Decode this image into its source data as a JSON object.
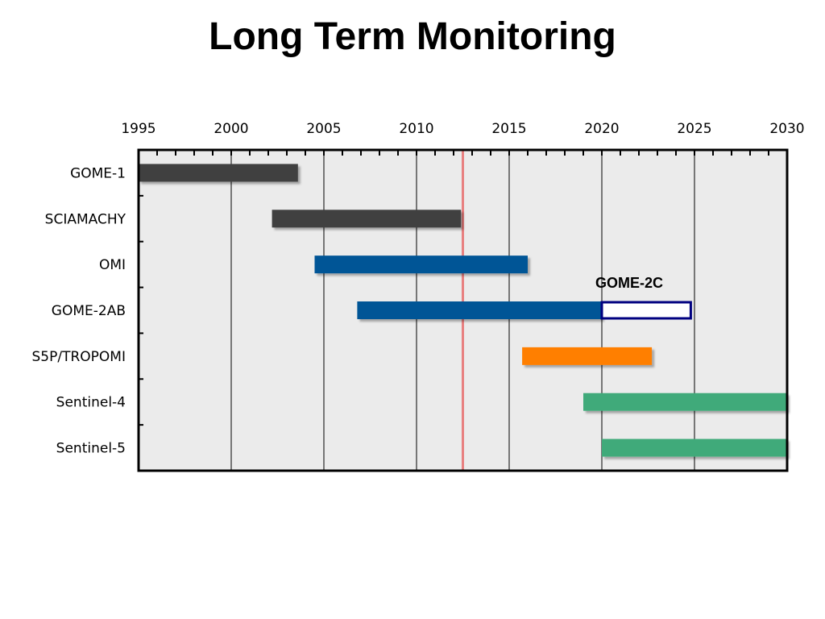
{
  "title": "Long Term Monitoring",
  "chart_data": {
    "type": "gantt",
    "title": "Long Term Monitoring",
    "xlim": [
      1995,
      2030
    ],
    "x_ticks": [
      "1995",
      "2000",
      "2005",
      "2010",
      "2015",
      "2020",
      "2025",
      "2030"
    ],
    "grid": true,
    "current_marker_year": 2012.5,
    "current_marker_color": "#e88080",
    "rows": [
      {
        "label": "GOME-1",
        "start": 1995.0,
        "end": 2003.6,
        "color": "#404040"
      },
      {
        "label": "SCIAMACHY",
        "start": 2002.2,
        "end": 2012.4,
        "color": "#404040"
      },
      {
        "label": "OMI",
        "start": 2004.5,
        "end": 2016.0,
        "color": "#005596"
      },
      {
        "label": "GOME-2AB",
        "start": 2006.8,
        "end": 2020.0,
        "color": "#005596"
      },
      {
        "label": "S5P/TROPOMI",
        "start": 2015.7,
        "end": 2022.7,
        "color": "#ff7f00"
      },
      {
        "label": "Sentinel-4",
        "start": 2019.0,
        "end": 2030.0,
        "color": "#3faa7a"
      },
      {
        "label": "Sentinel-5",
        "start": 2020.0,
        "end": 2030.0,
        "color": "#3faa7a"
      }
    ],
    "planned": [
      {
        "row": "GOME-2AB",
        "label": "GOME-2C",
        "start": 2020.0,
        "end": 2024.8,
        "color": "#000080"
      }
    ]
  }
}
